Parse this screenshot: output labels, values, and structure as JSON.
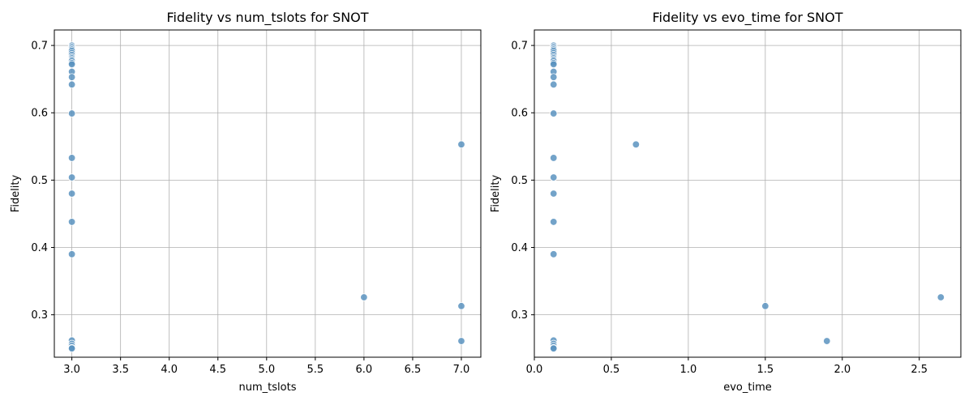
{
  "chart_data": [
    {
      "type": "scatter",
      "title": "Fidelity vs num_tslots for SNOT",
      "xlabel": "num_tslots",
      "ylabel": "Fidelity",
      "xlim": [
        2.82,
        7.2
      ],
      "ylim": [
        0.237,
        0.723
      ],
      "xticks": [
        "3.0",
        "3.5",
        "4.0",
        "4.5",
        "5.0",
        "5.5",
        "6.0",
        "6.5",
        "7.0"
      ],
      "yticks": [
        "0.3",
        "0.4",
        "0.5",
        "0.6",
        "0.7"
      ],
      "grid": true,
      "color": "#5b93bf",
      "points": [
        [
          3,
          0.7
        ],
        [
          3,
          0.698
        ],
        [
          3,
          0.696
        ],
        [
          3,
          0.694
        ],
        [
          3,
          0.692
        ],
        [
          3,
          0.689
        ],
        [
          3,
          0.686
        ],
        [
          3,
          0.683
        ],
        [
          3,
          0.681
        ],
        [
          3,
          0.679
        ],
        [
          3,
          0.677
        ],
        [
          3,
          0.674
        ],
        [
          3,
          0.672
        ],
        [
          3,
          0.661
        ],
        [
          3,
          0.653
        ],
        [
          3,
          0.642
        ],
        [
          3,
          0.599
        ],
        [
          3,
          0.533
        ],
        [
          3,
          0.504
        ],
        [
          3,
          0.48
        ],
        [
          3,
          0.438
        ],
        [
          3,
          0.39
        ],
        [
          3,
          0.262
        ],
        [
          3,
          0.257
        ],
        [
          3,
          0.254
        ],
        [
          3,
          0.251
        ],
        [
          3,
          0.25
        ],
        [
          7,
          0.553
        ],
        [
          6,
          0.326
        ],
        [
          7,
          0.313
        ],
        [
          7,
          0.261
        ]
      ]
    },
    {
      "type": "scatter",
      "title": "Fidelity vs evo_time for SNOT",
      "xlabel": "evo_time",
      "ylabel": "Fidelity",
      "xlim": [
        0.0,
        2.77
      ],
      "ylim": [
        0.237,
        0.723
      ],
      "xticks": [
        "0.0",
        "0.5",
        "1.0",
        "1.5",
        "2.0",
        "2.5"
      ],
      "yticks": [
        "0.3",
        "0.4",
        "0.5",
        "0.6",
        "0.7"
      ],
      "grid": true,
      "color": "#5b93bf",
      "points": [
        [
          0.125,
          0.7
        ],
        [
          0.125,
          0.698
        ],
        [
          0.125,
          0.696
        ],
        [
          0.125,
          0.694
        ],
        [
          0.125,
          0.692
        ],
        [
          0.125,
          0.689
        ],
        [
          0.125,
          0.686
        ],
        [
          0.125,
          0.683
        ],
        [
          0.125,
          0.681
        ],
        [
          0.125,
          0.679
        ],
        [
          0.125,
          0.677
        ],
        [
          0.125,
          0.674
        ],
        [
          0.125,
          0.672
        ],
        [
          0.125,
          0.661
        ],
        [
          0.125,
          0.653
        ],
        [
          0.125,
          0.642
        ],
        [
          0.125,
          0.599
        ],
        [
          0.125,
          0.533
        ],
        [
          0.125,
          0.504
        ],
        [
          0.125,
          0.48
        ],
        [
          0.125,
          0.438
        ],
        [
          0.125,
          0.39
        ],
        [
          0.125,
          0.262
        ],
        [
          0.125,
          0.257
        ],
        [
          0.125,
          0.254
        ],
        [
          0.125,
          0.251
        ],
        [
          0.125,
          0.25
        ],
        [
          0.66,
          0.553
        ],
        [
          1.5,
          0.313
        ],
        [
          1.9,
          0.261
        ],
        [
          2.64,
          0.326
        ]
      ]
    }
  ]
}
